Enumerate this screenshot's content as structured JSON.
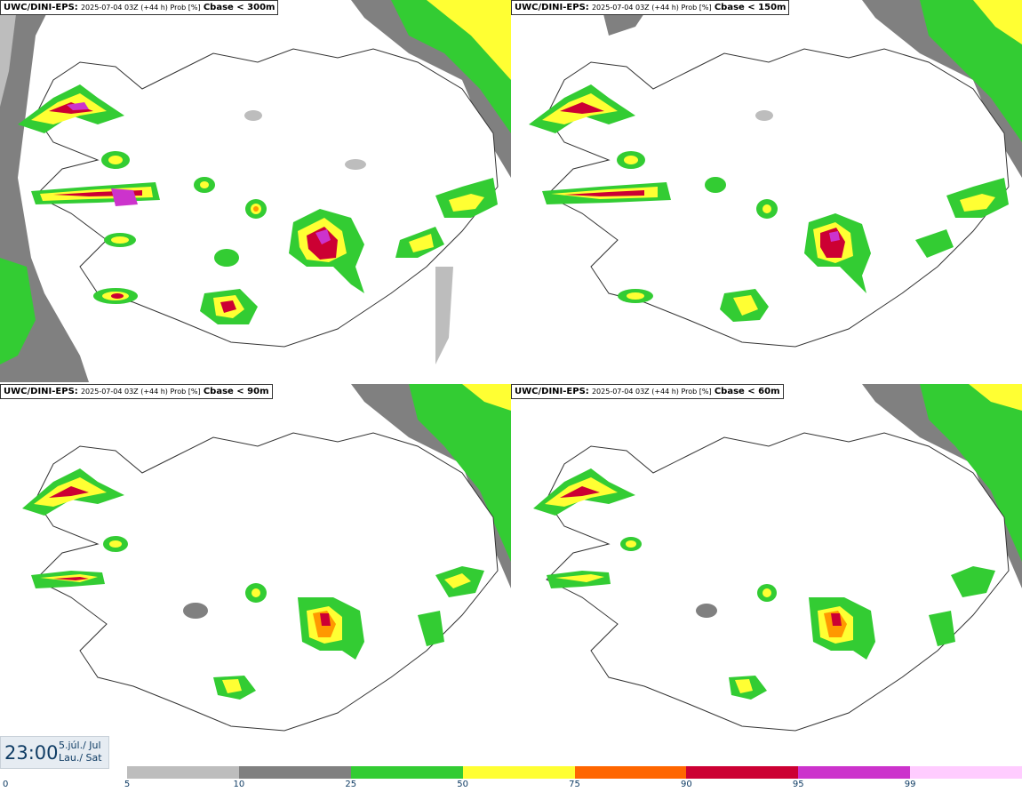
{
  "panels": [
    {
      "model": "UWC/DINI-EPS:",
      "run": "2025-07-04 03Z (+44 h) Prob [%]",
      "param": "Cbase < 300m"
    },
    {
      "model": "UWC/DINI-EPS:",
      "run": "2025-07-04 03Z (+44 h) Prob [%]",
      "param": "Cbase < 150m"
    },
    {
      "model": "UWC/DINI-EPS:",
      "run": "2025-07-04 03Z (+44 h) Prob [%]",
      "param": "Cbase < 90m"
    },
    {
      "model": "UWC/DINI-EPS:",
      "run": "2025-07-04 03Z (+44 h) Prob [%]",
      "param": "Cbase < 60m"
    }
  ],
  "valid_time": {
    "time": "23:00",
    "date_line1": "5.júl./ Jul",
    "date_line2": "Lau./ Sat"
  },
  "legend": {
    "ticks": [
      "0",
      "5",
      "10",
      "25",
      "50",
      "75",
      "90",
      "95",
      "99"
    ],
    "colors": [
      "#bdbdbd",
      "#808080",
      "#33cc33",
      "#ffff33",
      "#ff6600",
      "#cc0033",
      "#cc33cc",
      "#ffccff"
    ]
  },
  "map_colors": {
    "coast": "#333333",
    "sea_low": "#bdbdbd",
    "sea_mid": "#808080",
    "green": "#33cc33",
    "yellow": "#ffff33",
    "orange": "#ff9900",
    "red": "#cc0033",
    "magenta": "#cc33cc",
    "pink": "#ffccff"
  }
}
